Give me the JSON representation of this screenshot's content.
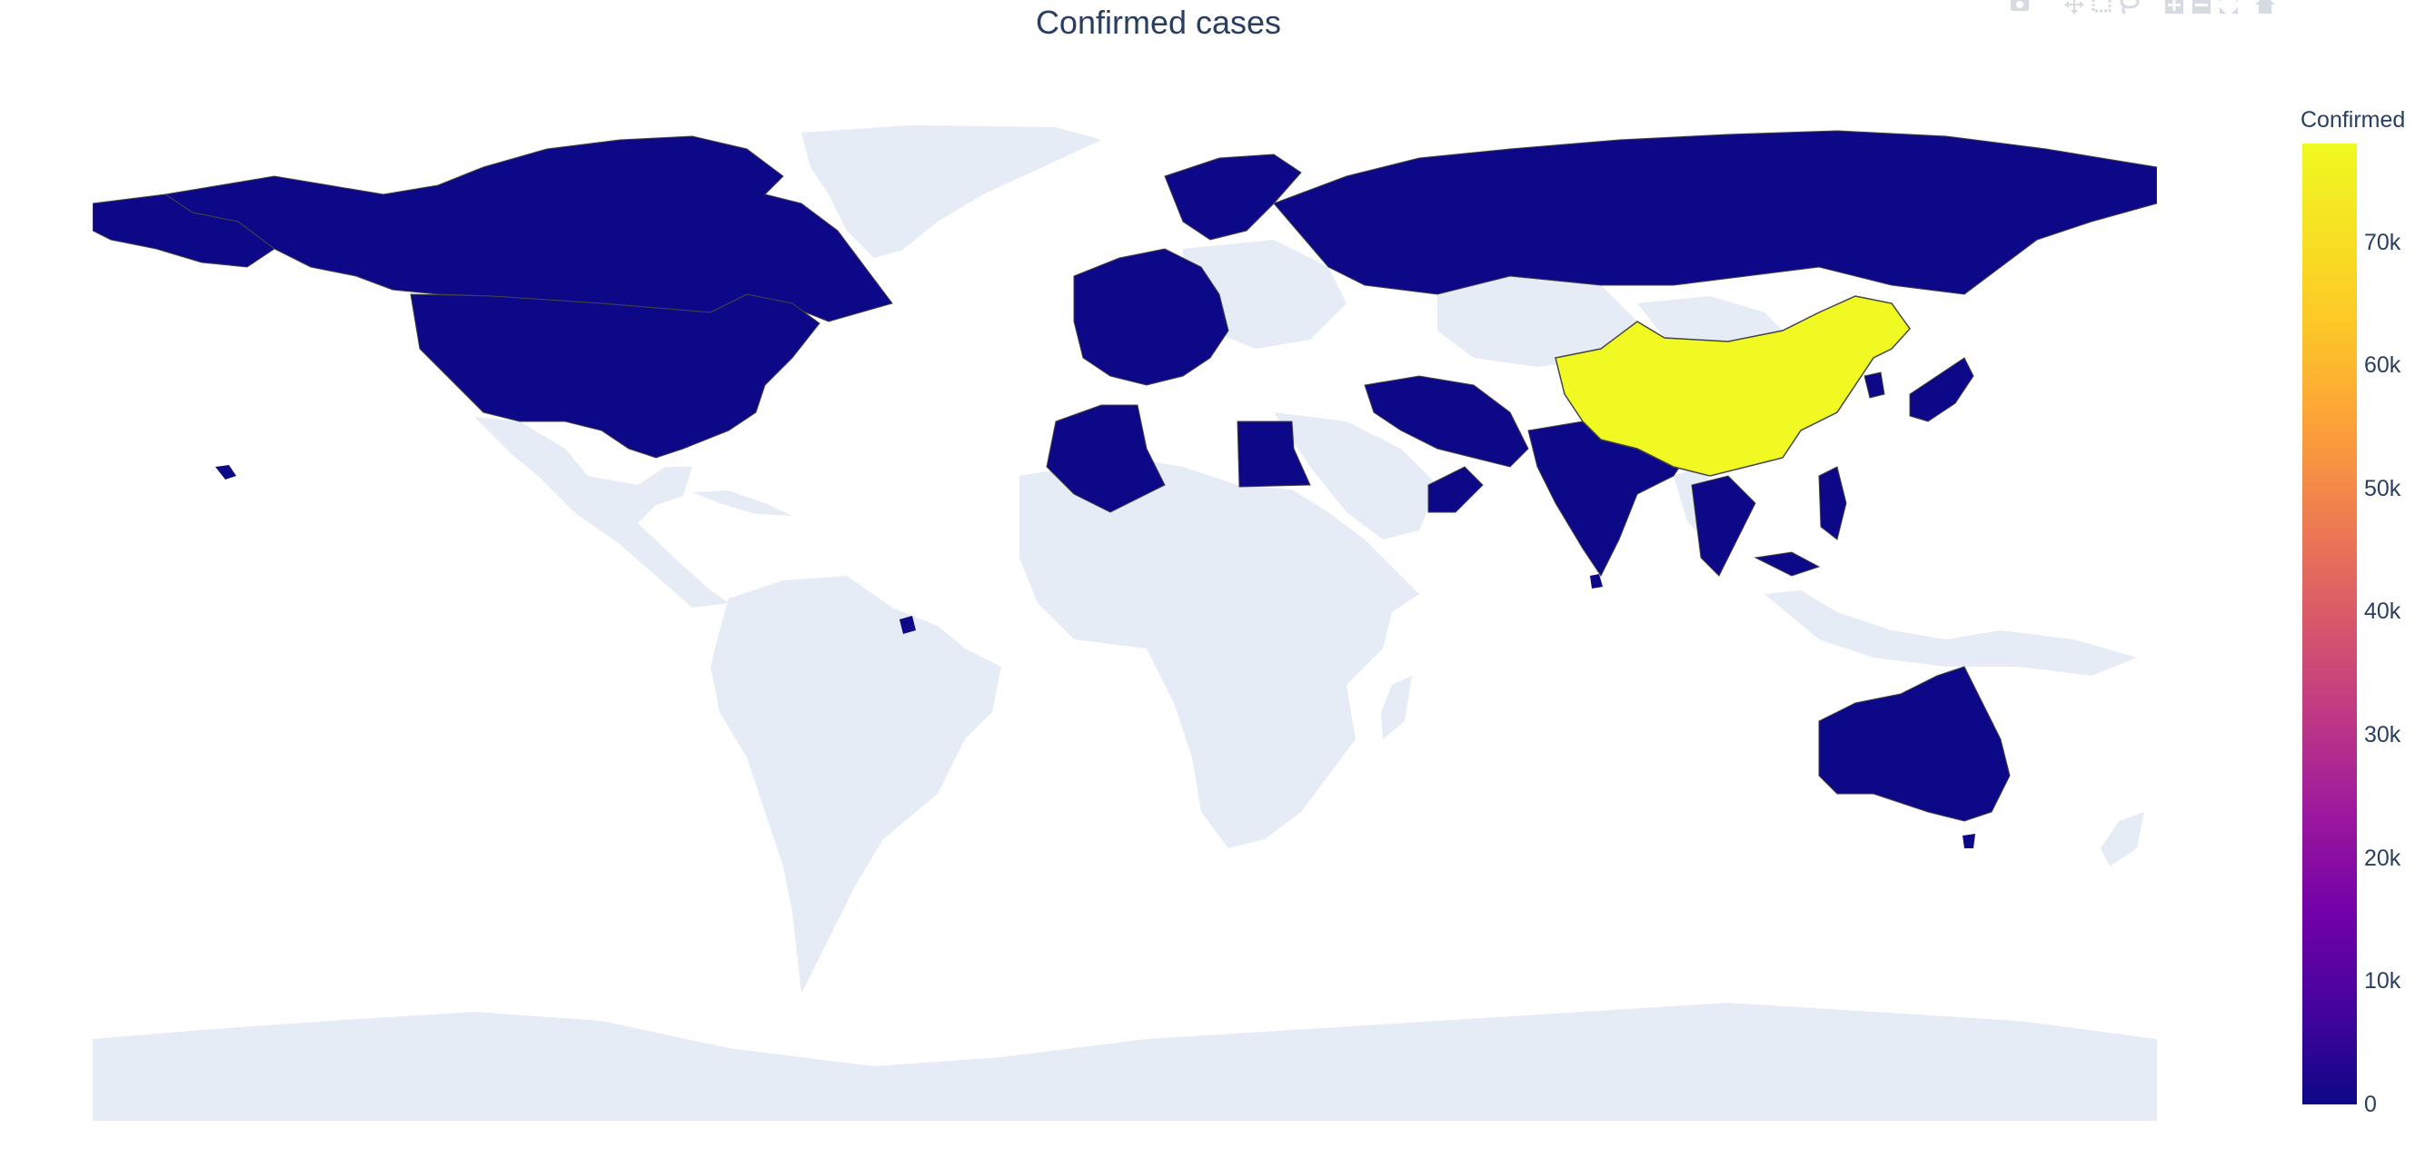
{
  "chart_data": {
    "type": "choropleth",
    "title": "Confirmed cases",
    "colorbar": {
      "title": "Confirmed",
      "colorscale": "Plasma",
      "ticks": [
        "0",
        "10k",
        "20k",
        "30k",
        "40k",
        "50k",
        "60k",
        "70k"
      ],
      "range": [
        0,
        78000
      ]
    },
    "colors": {
      "low": "#0d0887",
      "high": "#f0f921",
      "land_no_data": "#e5ecf6",
      "ocean": "#ffffff",
      "title": "#2a3f5f"
    },
    "regions_shown": [
      {
        "name": "China",
        "value": 78000
      },
      {
        "name": "Canada",
        "value": 0
      },
      {
        "name": "United States",
        "value": 0
      },
      {
        "name": "Russia",
        "value": 0
      },
      {
        "name": "Australia",
        "value": 0
      },
      {
        "name": "India",
        "value": 0
      },
      {
        "name": "Japan",
        "value": 0
      },
      {
        "name": "Algeria",
        "value": 0
      },
      {
        "name": "Egypt",
        "value": 0
      },
      {
        "name": "Iran",
        "value": 0
      }
    ]
  },
  "modebar": {
    "icons": [
      "camera-icon",
      "pan-icon",
      "box-select-icon",
      "lasso-icon",
      "zoom-in-icon",
      "zoom-out-icon",
      "autoscale-icon",
      "home-icon"
    ]
  }
}
